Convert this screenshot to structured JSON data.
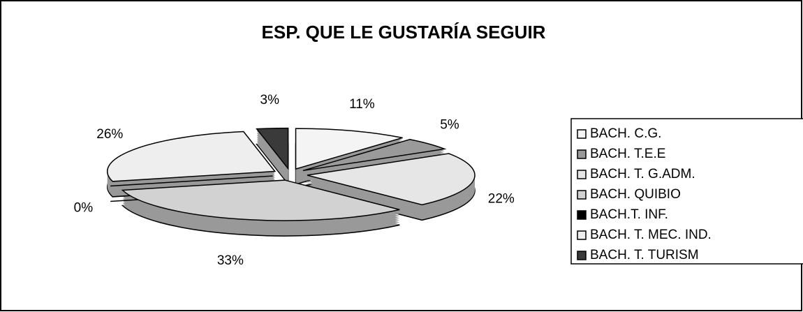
{
  "chart_data": {
    "type": "pie",
    "title": "ESP. QUE LE GUSTARÍA SEGUIR",
    "categories": [
      "BACH. C.G.",
      "BACH. T.E.E",
      "BACH. T. G.ADM.",
      "BACH. QUIBIO",
      "BACH.T. INF.",
      "BACH. T. MEC. IND.",
      "BACH. T. TURISM"
    ],
    "values": [
      11,
      5,
      22,
      33,
      0,
      26,
      3
    ],
    "value_labels": [
      "11%",
      "5%",
      "22%",
      "33%",
      "0%",
      "26%",
      "3%"
    ],
    "colors": [
      "#f4f4f4",
      "#9a9a9a",
      "#e6e6e6",
      "#d2d2d2",
      "#000000",
      "#eeeeee",
      "#3a3a3a"
    ],
    "legend": "right"
  }
}
